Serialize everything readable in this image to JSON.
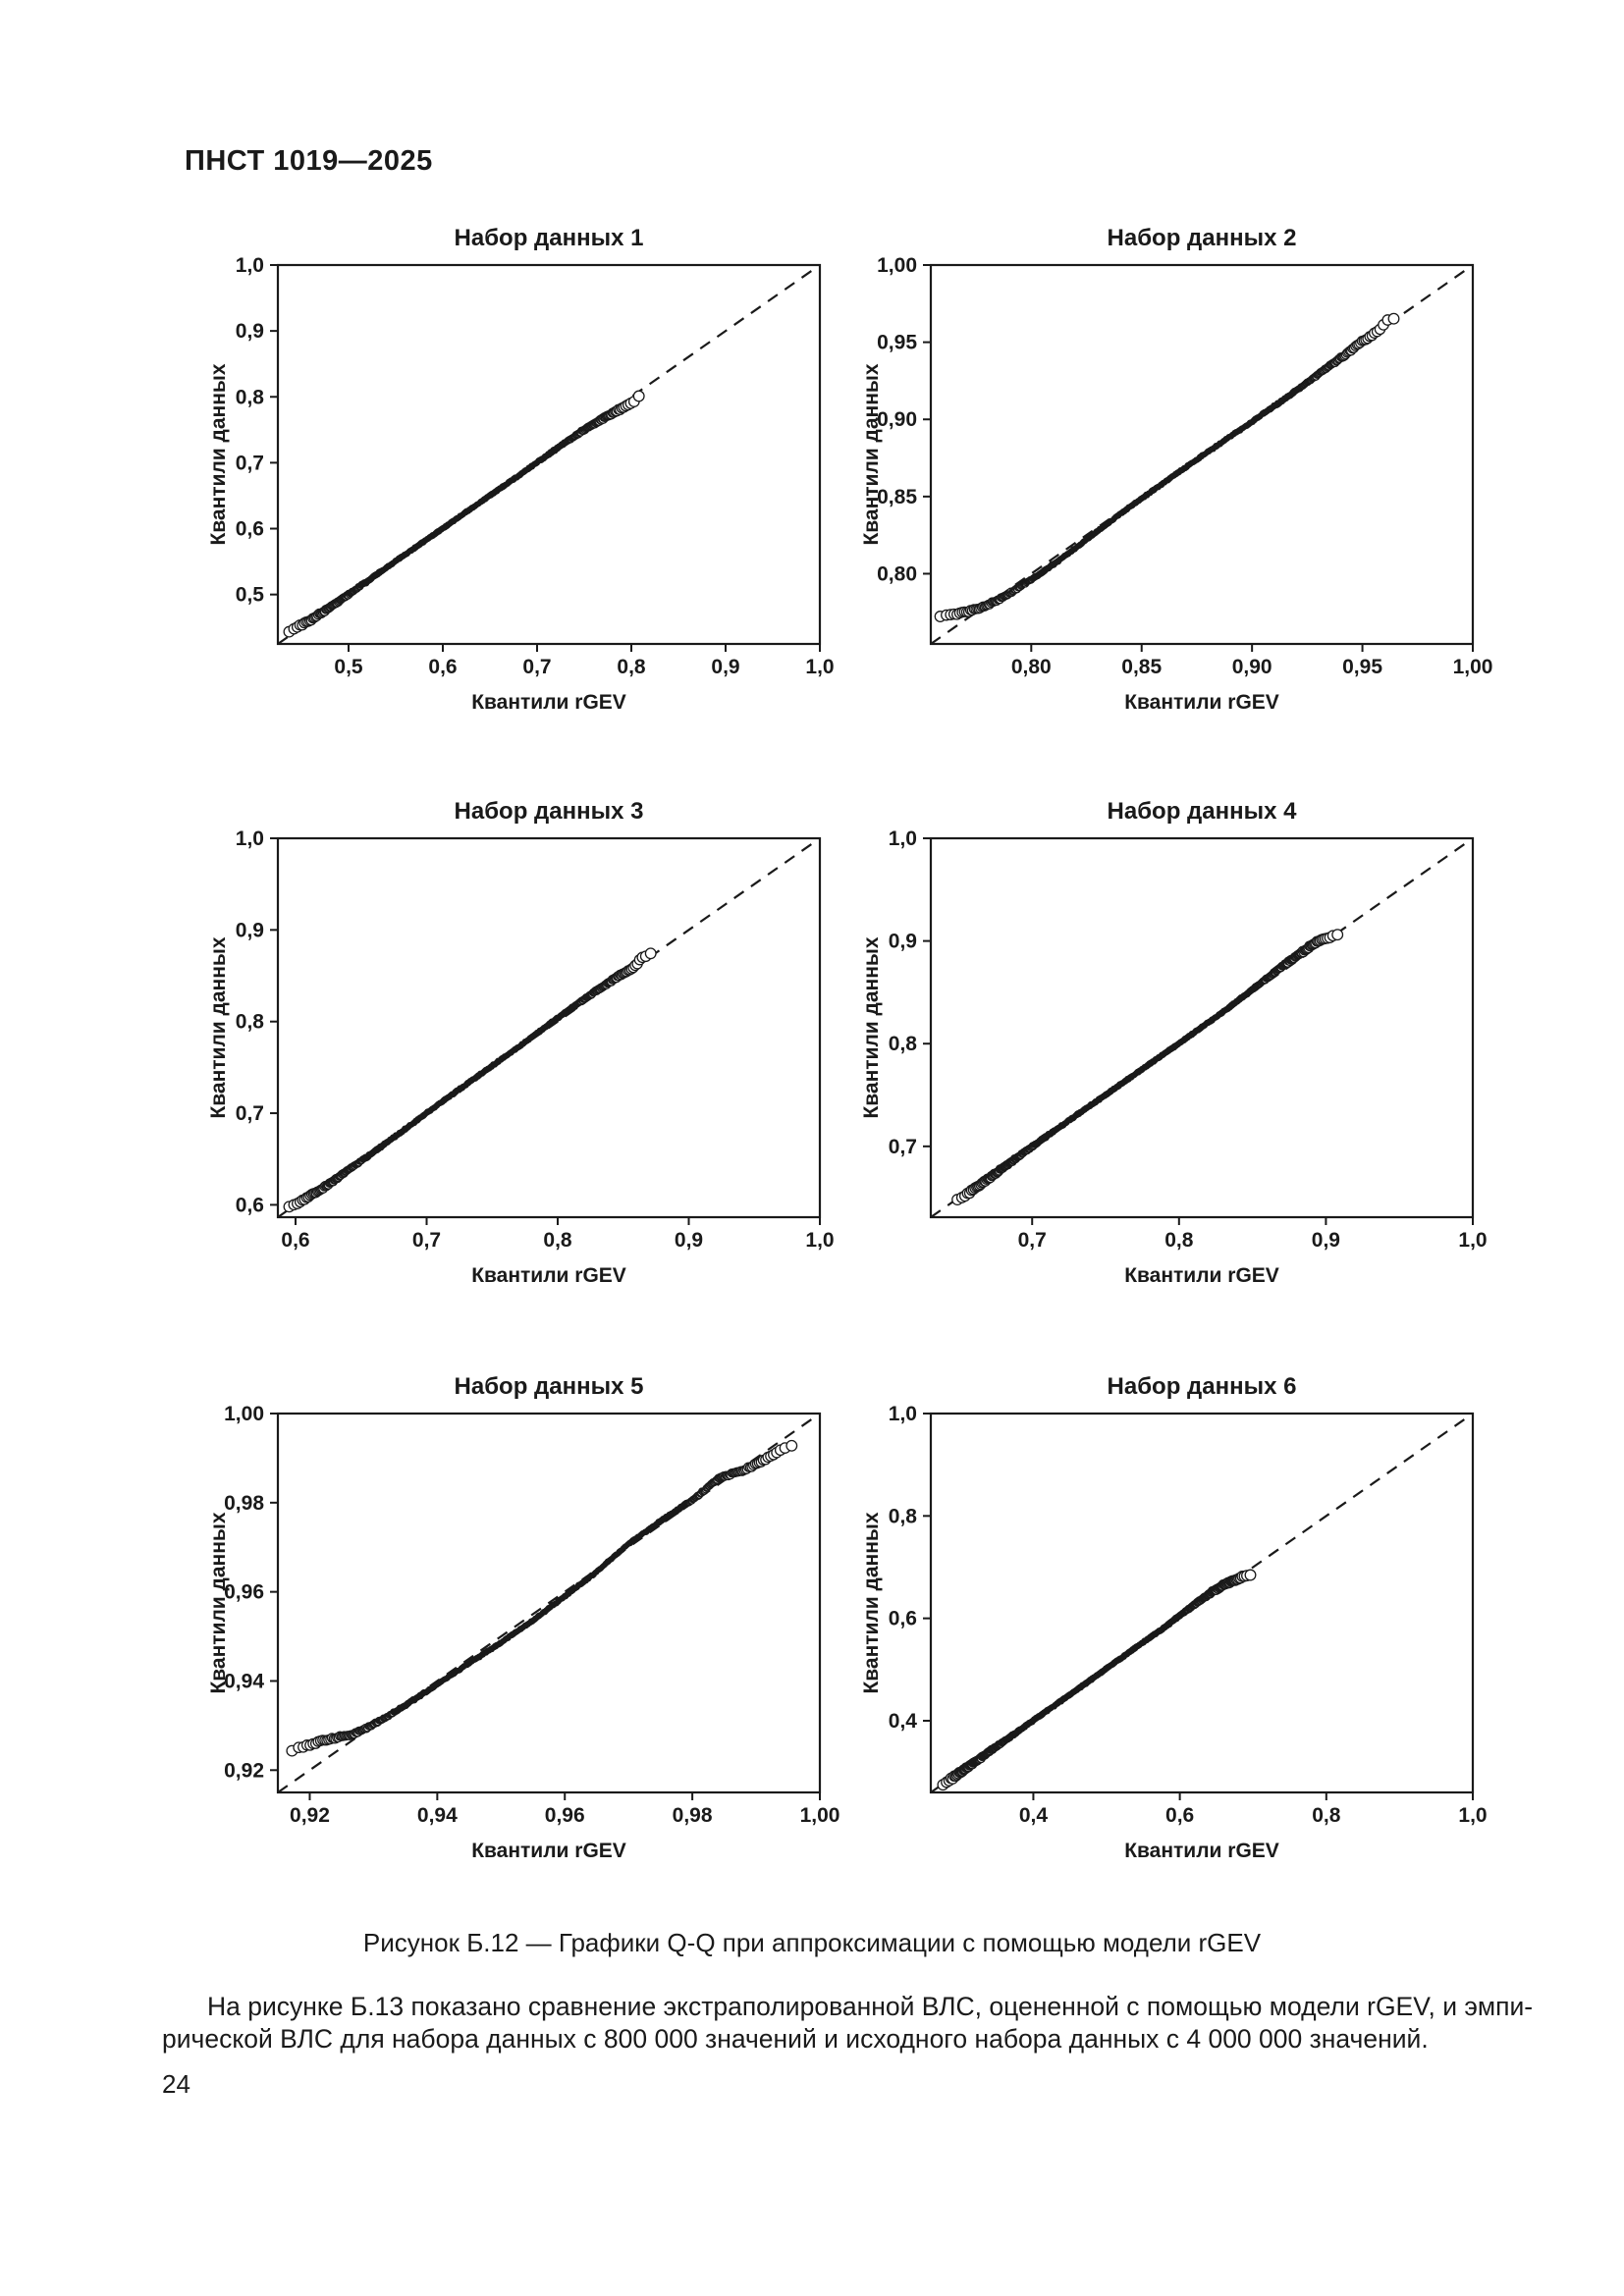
{
  "page": {
    "header": "ПНСТ 1019—2025",
    "figure_caption": "Рисунок Б.12 — Графики Q-Q при аппроксимации с помощью модели rGEV",
    "paragraph_lines": [
      "На рисунке Б.13 показано сравнение экстраполированной ВЛС, оцененной с помощью модели rGEV, и эмпи-",
      "рической ВЛС для набора данных с 800 000 значений и исходного набора данных с 4 000 000 значений."
    ],
    "page_number": "24",
    "ink_color": "#1a1a1a",
    "background_color": "#ffffff"
  },
  "chart_data": [
    {
      "type": "scatter",
      "title": "Набор данных 1",
      "xlabel": "Квантили rGEV",
      "ylabel": "Квантили данных",
      "xlim": [
        0.425,
        1.0
      ],
      "ylim": [
        0.425,
        1.0
      ],
      "xtick_values": [
        0.5,
        0.6,
        0.7,
        0.8,
        0.9,
        1.0
      ],
      "xtick_labels": [
        "0,5",
        "0,6",
        "0,7",
        "0,8",
        "0,9",
        "1,0"
      ],
      "ytick_values": [
        0.5,
        0.6,
        0.7,
        0.8,
        0.9,
        1.0
      ],
      "ytick_labels": [
        "0,5",
        "0,6",
        "0,7",
        "0,8",
        "0,9",
        "1,0"
      ],
      "identity_line": true,
      "points_spec": {
        "n": 620,
        "seed": 101,
        "x_range": [
          0.43,
          0.815
        ],
        "trend": [
          [
            0.43,
            0.438
          ],
          [
            0.445,
            0.45
          ],
          [
            0.46,
            0.462
          ],
          [
            0.48,
            0.4805
          ],
          [
            0.5,
            0.5
          ],
          [
            0.53,
            0.5305
          ],
          [
            0.56,
            0.5608
          ],
          [
            0.6,
            0.6005
          ],
          [
            0.64,
            0.6402
          ],
          [
            0.68,
            0.68
          ],
          [
            0.71,
            0.7105
          ],
          [
            0.73,
            0.731
          ],
          [
            0.748,
            0.748
          ],
          [
            0.762,
            0.76
          ],
          [
            0.775,
            0.771
          ],
          [
            0.788,
            0.781
          ],
          [
            0.8,
            0.79
          ],
          [
            0.815,
            0.812
          ]
        ]
      }
    },
    {
      "type": "scatter",
      "title": "Набор данных 2",
      "xlabel": "Квантили rGEV",
      "ylabel": "Квантили данных",
      "xlim": [
        0.7545,
        1.0
      ],
      "ylim": [
        0.7545,
        1.0
      ],
      "xtick_values": [
        0.8,
        0.85,
        0.9,
        0.95,
        1.0
      ],
      "xtick_labels": [
        "0,80",
        "0,85",
        "0,90",
        "0,95",
        "1,00"
      ],
      "ytick_values": [
        0.8,
        0.85,
        0.9,
        0.95,
        1.0
      ],
      "ytick_labels": [
        "0,80",
        "0,85",
        "0,90",
        "0,95",
        "1,00"
      ],
      "identity_line": true,
      "points_spec": {
        "n": 640,
        "seed": 102,
        "x_range": [
          0.755,
          0.968
        ],
        "trend": [
          [
            0.755,
            0.7718
          ],
          [
            0.7585,
            0.7721
          ],
          [
            0.762,
            0.7727
          ],
          [
            0.766,
            0.7737
          ],
          [
            0.77,
            0.775
          ],
          [
            0.7745,
            0.7768
          ],
          [
            0.779,
            0.779
          ],
          [
            0.784,
            0.7822
          ],
          [
            0.79,
            0.7872
          ],
          [
            0.796,
            0.7925
          ],
          [
            0.805,
            0.801
          ],
          [
            0.82,
            0.8165
          ],
          [
            0.84,
            0.8385
          ],
          [
            0.86,
            0.859
          ],
          [
            0.88,
            0.879
          ],
          [
            0.9,
            0.8985
          ],
          [
            0.915,
            0.9135
          ],
          [
            0.928,
            0.927
          ],
          [
            0.936,
            0.9355
          ],
          [
            0.942,
            0.9415
          ],
          [
            0.948,
            0.949
          ],
          [
            0.953,
            0.953
          ],
          [
            0.958,
            0.959
          ],
          [
            0.9625,
            0.9655
          ],
          [
            0.968,
            0.9648
          ]
        ]
      }
    },
    {
      "type": "scatter",
      "title": "Набор данных 3",
      "xlabel": "Квантили rGEV",
      "ylabel": "Квантили данных",
      "xlim": [
        0.5865,
        1.0
      ],
      "ylim": [
        0.5865,
        1.0
      ],
      "xtick_values": [
        0.6,
        0.7,
        0.8,
        0.9,
        1.0
      ],
      "xtick_labels": [
        "0,6",
        "0,7",
        "0,8",
        "0,9",
        "1,0"
      ],
      "ytick_values": [
        0.6,
        0.7,
        0.8,
        0.9,
        1.0
      ],
      "ytick_labels": [
        "0,6",
        "0,7",
        "0,8",
        "0,9",
        "1,0"
      ],
      "identity_line": true,
      "points_spec": {
        "n": 640,
        "seed": 103,
        "x_range": [
          0.59,
          0.876
        ],
        "trend": [
          [
            0.59,
            0.5945
          ],
          [
            0.6,
            0.6008
          ],
          [
            0.608,
            0.6078
          ],
          [
            0.618,
            0.6155
          ],
          [
            0.63,
            0.6275
          ],
          [
            0.65,
            0.6478
          ],
          [
            0.68,
            0.6788
          ],
          [
            0.71,
            0.7108
          ],
          [
            0.74,
            0.7415
          ],
          [
            0.77,
            0.7722
          ],
          [
            0.8,
            0.804
          ],
          [
            0.82,
            0.8245
          ],
          [
            0.835,
            0.839
          ],
          [
            0.848,
            0.851
          ],
          [
            0.858,
            0.859
          ],
          [
            0.865,
            0.8705
          ],
          [
            0.876,
            0.877
          ]
        ]
      }
    },
    {
      "type": "scatter",
      "title": "Набор данных 4",
      "xlabel": "Квантили rGEV",
      "ylabel": "Квантили данных",
      "xlim": [
        0.631,
        1.0
      ],
      "ylim": [
        0.631,
        1.0
      ],
      "xtick_values": [
        0.7,
        0.8,
        0.9,
        1.0
      ],
      "xtick_labels": [
        "0,7",
        "0,8",
        "0,9",
        "1,0"
      ],
      "ytick_values": [
        0.7,
        0.8,
        0.9,
        1.0
      ],
      "ytick_labels": [
        "0,7",
        "0,8",
        "0,9",
        "1,0"
      ],
      "identity_line": true,
      "points_spec": {
        "n": 840,
        "seed": 104,
        "x_range": [
          0.645,
          0.912
        ],
        "trend": [
          [
            0.645,
            0.6428
          ],
          [
            0.652,
            0.65
          ],
          [
            0.66,
            0.6578
          ],
          [
            0.67,
            0.6682
          ],
          [
            0.68,
            0.679
          ],
          [
            0.7,
            0.6998
          ],
          [
            0.73,
            0.7302
          ],
          [
            0.76,
            0.7602
          ],
          [
            0.8,
            0.8003
          ],
          [
            0.83,
            0.8308
          ],
          [
            0.85,
            0.8528
          ],
          [
            0.862,
            0.8658
          ],
          [
            0.872,
            0.8775
          ],
          [
            0.882,
            0.8872
          ],
          [
            0.893,
            0.8985
          ],
          [
            0.9,
            0.9022
          ],
          [
            0.912,
            0.908
          ]
        ]
      }
    },
    {
      "type": "scatter",
      "title": "Набор данных 5",
      "xlabel": "Квантили rGEV",
      "ylabel": "Квантили данных",
      "xlim": [
        0.915,
        1.0
      ],
      "ylim": [
        0.915,
        1.0
      ],
      "xtick_values": [
        0.92,
        0.94,
        0.96,
        0.98,
        1.0
      ],
      "xtick_labels": [
        "0,92",
        "0,94",
        "0,96",
        "0,98",
        "1,00"
      ],
      "ytick_values": [
        0.92,
        0.94,
        0.96,
        0.98,
        1.0
      ],
      "ytick_labels": [
        "0,92",
        "0,94",
        "0,96",
        "0,98",
        "1,00"
      ],
      "identity_line": true,
      "points_spec": {
        "n": 660,
        "seed": 105,
        "x_range": [
          0.9158,
          0.997
        ],
        "trend": [
          [
            0.9158,
            0.9238
          ],
          [
            0.9175,
            0.9246
          ],
          [
            0.92,
            0.9256
          ],
          [
            0.9222,
            0.9266
          ],
          [
            0.9245,
            0.9274
          ],
          [
            0.9268,
            0.928
          ],
          [
            0.929,
            0.9296
          ],
          [
            0.9312,
            0.9312
          ],
          [
            0.9335,
            0.9332
          ],
          [
            0.936,
            0.9355
          ],
          [
            0.9385,
            0.9378
          ],
          [
            0.941,
            0.9402
          ],
          [
            0.945,
            0.944
          ],
          [
            0.95,
            0.9486
          ],
          [
            0.955,
            0.9536
          ],
          [
            0.96,
            0.959
          ],
          [
            0.965,
            0.9645
          ],
          [
            0.97,
            0.9708
          ],
          [
            0.975,
            0.9758
          ],
          [
            0.98,
            0.9806
          ],
          [
            0.9845,
            0.9858
          ],
          [
            0.988,
            0.9872
          ],
          [
            0.991,
            0.9894
          ],
          [
            0.9945,
            0.9924
          ],
          [
            0.997,
            0.9932
          ]
        ]
      }
    },
    {
      "type": "scatter",
      "title": "Набор данных 6",
      "xlabel": "Квантили rGEV",
      "ylabel": "Квантили данных",
      "xlim": [
        0.26,
        1.0
      ],
      "ylim": [
        0.26,
        1.0
      ],
      "xtick_values": [
        0.4,
        0.6,
        0.8,
        1.0
      ],
      "xtick_labels": [
        "0,4",
        "0,6",
        "0,8",
        "1,0"
      ],
      "ytick_values": [
        0.4,
        0.6,
        0.8,
        1.0
      ],
      "ytick_labels": [
        "0,4",
        "0,6",
        "0,8",
        "1,0"
      ],
      "identity_line": true,
      "points_spec": {
        "n": 860,
        "seed": 106,
        "x_range": [
          0.27,
          0.703
        ],
        "trend": [
          [
            0.27,
            0.2685
          ],
          [
            0.29,
            0.2886
          ],
          [
            0.32,
            0.3196
          ],
          [
            0.36,
            0.36
          ],
          [
            0.4,
            0.4006
          ],
          [
            0.44,
            0.441
          ],
          [
            0.48,
            0.4816
          ],
          [
            0.52,
            0.5226
          ],
          [
            0.55,
            0.5536
          ],
          [
            0.575,
            0.5782
          ],
          [
            0.595,
            0.6002
          ],
          [
            0.612,
            0.6182
          ],
          [
            0.628,
            0.6352
          ],
          [
            0.645,
            0.6525
          ],
          [
            0.66,
            0.6652
          ],
          [
            0.675,
            0.6742
          ],
          [
            0.69,
            0.6832
          ],
          [
            0.703,
            0.6885
          ]
        ]
      }
    }
  ]
}
